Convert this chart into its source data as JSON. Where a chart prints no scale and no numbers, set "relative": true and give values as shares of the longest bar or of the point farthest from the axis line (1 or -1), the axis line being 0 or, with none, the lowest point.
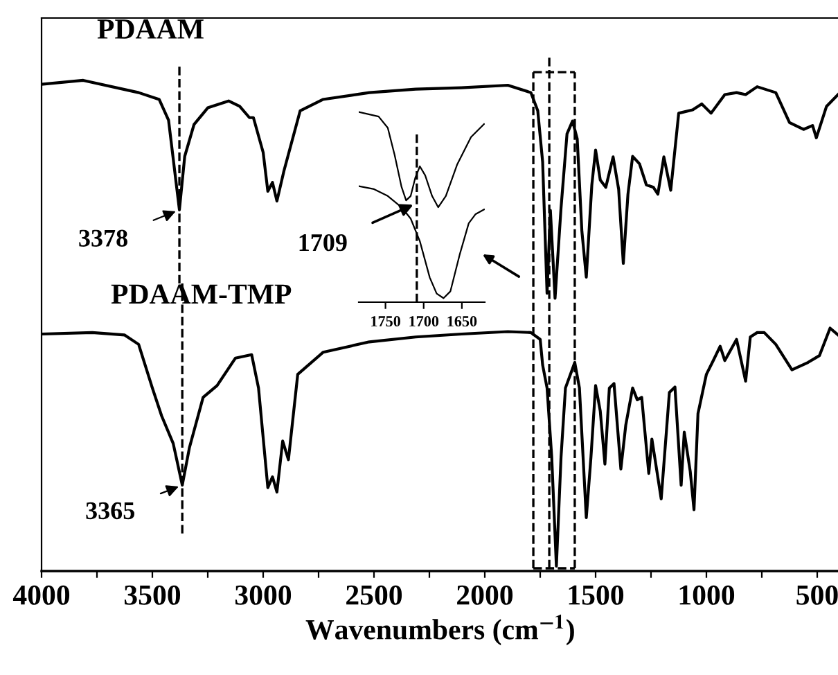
{
  "chart_data": [
    {
      "type": "line",
      "relative": true,
      "xlabel": "Wavenumbers (cm$^{−1}$)",
      "xlim": [
        4000,
        400
      ],
      "xticks": [
        4000,
        {
          "value": 3750,
          "label": null
        },
        3500,
        {
          "value": 3250,
          "label": null
        },
        3000,
        {
          "value": 2750,
          "label": null
        },
        2500,
        {
          "value": 2250,
          "label": null
        },
        2000,
        {
          "value": 1750,
          "label": null
        },
        1500,
        {
          "value": 1250,
          "label": null
        },
        1000,
        {
          "value": 750,
          "label": null
        },
        500
      ],
      "tick_labels": "x",
      "grid": false,
      "marker": "none",
      "line_style": "solid",
      "series": [
        {
          "name": "PDAAM",
          "color": "#000000",
          "x": [
            4000,
            3812,
            3562,
            3469,
            3427,
            3378,
            3354,
            3312,
            3250,
            3156,
            3106,
            3062,
            3044,
            3000,
            2979,
            2958,
            2938,
            2906,
            2833,
            2731,
            2521,
            2312,
            2106,
            1896,
            1792,
            1761,
            1739,
            1719,
            1704,
            1683,
            1656,
            1629,
            1604,
            1583,
            1562,
            1542,
            1517,
            1500,
            1479,
            1454,
            1421,
            1396,
            1375,
            1354,
            1333,
            1302,
            1271,
            1239,
            1219,
            1192,
            1161,
            1125,
            1062,
            1021,
            979,
            917,
            864,
            823,
            771,
            687,
            625,
            562,
            521,
            504,
            458,
            406
          ],
          "values": [
            0.992,
            1.0,
            0.975,
            0.961,
            0.919,
            0.736,
            0.845,
            0.91,
            0.944,
            0.958,
            0.947,
            0.924,
            0.924,
            0.853,
            0.774,
            0.792,
            0.754,
            0.816,
            0.938,
            0.961,
            0.975,
            0.982,
            0.985,
            0.99,
            0.975,
            0.938,
            0.834,
            0.566,
            0.735,
            0.556,
            0.74,
            0.891,
            0.917,
            0.881,
            0.693,
            0.599,
            0.787,
            0.858,
            0.797,
            0.782,
            0.844,
            0.778,
            0.627,
            0.768,
            0.845,
            0.83,
            0.787,
            0.782,
            0.768,
            0.844,
            0.776,
            0.933,
            0.94,
            0.952,
            0.933,
            0.971,
            0.975,
            0.971,
            0.987,
            0.975,
            0.914,
            0.9,
            0.908,
            0.883,
            0.947,
            0.971
          ]
        },
        {
          "name": "PDAAM-TMP",
          "color": "#000000",
          "x": [
            4000,
            3771,
            3625,
            3562,
            3500,
            3458,
            3406,
            3365,
            3333,
            3271,
            3208,
            3125,
            3052,
            3021,
            2979,
            2958,
            2938,
            2912,
            2886,
            2844,
            2729,
            2521,
            2312,
            2104,
            1896,
            1792,
            1750,
            1739,
            1719,
            1698,
            1677,
            1656,
            1636,
            1594,
            1573,
            1542,
            1521,
            1500,
            1479,
            1458,
            1438,
            1417,
            1386,
            1364,
            1333,
            1312,
            1292,
            1260,
            1246,
            1204,
            1167,
            1142,
            1114,
            1100,
            1073,
            1056,
            1038,
            1000,
            969,
            938,
            917,
            864,
            823,
            802,
            771,
            739,
            687,
            614,
            542,
            490,
            442,
            406
          ],
          "values": [
            0.483,
            0.486,
            0.481,
            0.462,
            0.373,
            0.316,
            0.26,
            0.175,
            0.251,
            0.354,
            0.378,
            0.434,
            0.441,
            0.373,
            0.17,
            0.192,
            0.161,
            0.265,
            0.227,
            0.401,
            0.446,
            0.467,
            0.477,
            0.483,
            0.488,
            0.486,
            0.472,
            0.42,
            0.373,
            0.232,
            0.01,
            0.232,
            0.373,
            0.425,
            0.373,
            0.109,
            0.232,
            0.378,
            0.326,
            0.218,
            0.373,
            0.382,
            0.208,
            0.297,
            0.373,
            0.349,
            0.354,
            0.199,
            0.269,
            0.147,
            0.364,
            0.375,
            0.175,
            0.283,
            0.203,
            0.125,
            0.321,
            0.401,
            0.429,
            0.458,
            0.429,
            0.472,
            0.387,
            0.477,
            0.486,
            0.486,
            0.462,
            0.41,
            0.425,
            0.439,
            0.495,
            0.481
          ]
        }
      ],
      "ref_lines": [
        {
          "axis": "x",
          "value": 3378,
          "line_style": "dashed",
          "color": "#000000"
        },
        {
          "axis": "x",
          "value": 3365,
          "line_style": "dashed",
          "color": "#000000"
        },
        {
          "axis": "x",
          "value": 1709,
          "line_style": "dashed",
          "color": "#000000"
        },
        {
          "axis": "x",
          "value": 1781,
          "line_style": "dashed",
          "color": "#000000"
        },
        {
          "axis": "x",
          "value": 1594,
          "line_style": "dashed",
          "color": "#000000"
        }
      ],
      "annotations": [
        {
          "text": "3378",
          "x": 3378,
          "y": 0.736
        },
        {
          "text": "3365",
          "x": 3365,
          "y": 0.175
        }
      ]
    },
    {
      "type": "line",
      "relative": true,
      "xlim": [
        1785,
        1620
      ],
      "xticks": [
        1750,
        1700,
        1650
      ],
      "tick_labels": "x",
      "marker": "none",
      "line_style": "solid",
      "series": [
        {
          "color": "#000000",
          "x": [
            1785,
            1759,
            1747,
            1738,
            1729,
            1723,
            1717,
            1711,
            1705,
            1698,
            1689,
            1681,
            1671,
            1656,
            1638,
            1621
          ],
          "values": [
            1.0,
            0.976,
            0.916,
            0.773,
            0.606,
            0.535,
            0.558,
            0.654,
            0.714,
            0.666,
            0.558,
            0.499,
            0.558,
            0.725,
            0.868,
            0.936
          ]
        },
        {
          "color": "#000000",
          "x": [
            1785,
            1765,
            1747,
            1729,
            1717,
            1705,
            1692,
            1683,
            1674,
            1665,
            1653,
            1641,
            1632,
            1621
          ],
          "values": [
            0.61,
            0.594,
            0.558,
            0.499,
            0.439,
            0.32,
            0.129,
            0.045,
            0.021,
            0.057,
            0.248,
            0.415,
            0.463,
            0.487
          ]
        }
      ],
      "ref_lines": [
        {
          "axis": "x",
          "value": 1709,
          "line_style": "dashed",
          "color": "#000000"
        }
      ],
      "annotations": [
        {
          "text": "1709",
          "x": 1709,
          "y": 0.52
        }
      ]
    }
  ]
}
